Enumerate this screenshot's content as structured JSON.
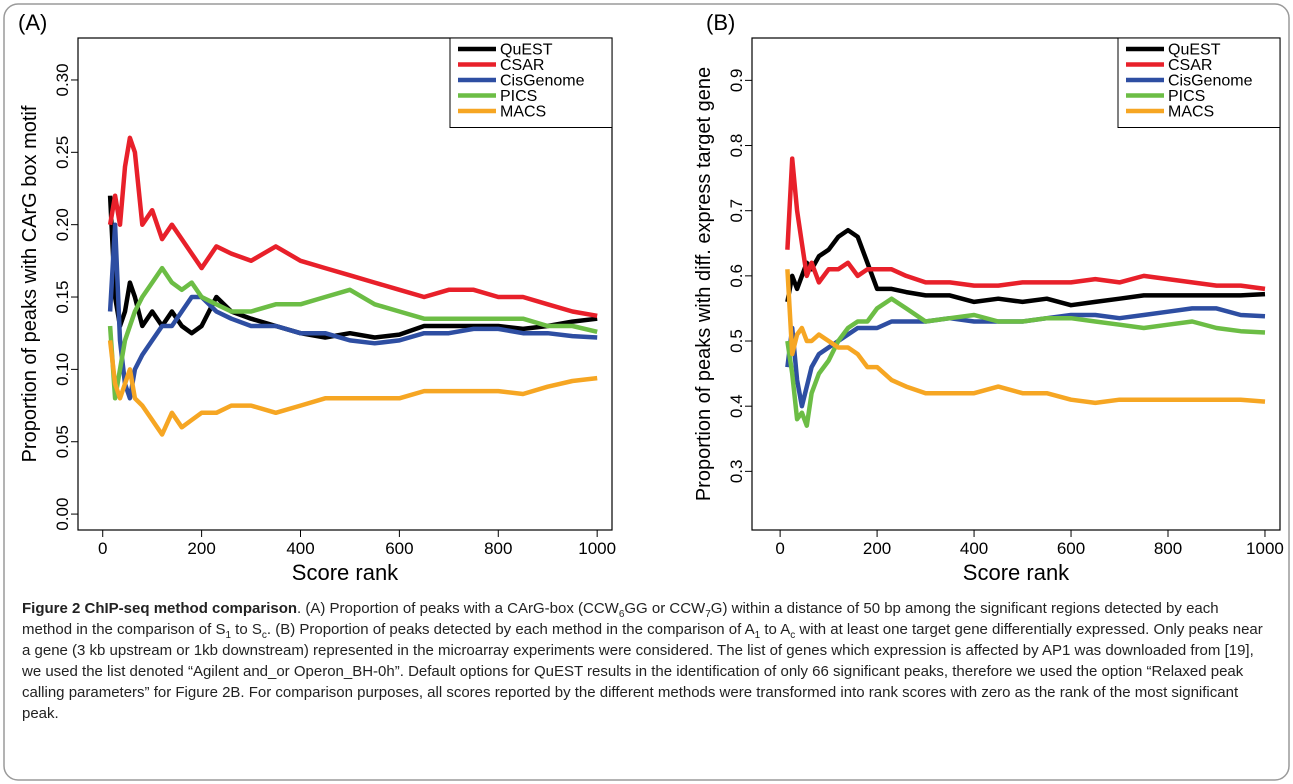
{
  "chart_data": [
    {
      "type": "line",
      "panel_label": "(A)",
      "x_label": "Score rank",
      "y_label": "Proportion of peaks with CArG box motif",
      "x": [
        15,
        25,
        35,
        45,
        55,
        65,
        80,
        100,
        120,
        140,
        160,
        180,
        200,
        230,
        260,
        300,
        350,
        400,
        450,
        500,
        550,
        600,
        650,
        700,
        750,
        800,
        850,
        900,
        950,
        1000
      ],
      "series": [
        {
          "name": "QuEST",
          "color": "#000000",
          "values": [
            0.22,
            0.15,
            0.13,
            0.14,
            0.16,
            0.15,
            0.13,
            0.14,
            0.13,
            0.14,
            0.13,
            0.125,
            0.13,
            0.15,
            0.14,
            0.135,
            0.13,
            0.125,
            0.122,
            0.125,
            0.122,
            0.124,
            0.13,
            0.13,
            0.13,
            0.13,
            0.128,
            0.13,
            0.133,
            0.135
          ]
        },
        {
          "name": "CSAR",
          "color": "#e8202a",
          "values": [
            0.2,
            0.22,
            0.2,
            0.24,
            0.26,
            0.25,
            0.2,
            0.21,
            0.19,
            0.2,
            0.19,
            0.18,
            0.17,
            0.185,
            0.18,
            0.175,
            0.185,
            0.175,
            0.17,
            0.165,
            0.16,
            0.155,
            0.15,
            0.155,
            0.155,
            0.15,
            0.15,
            0.145,
            0.14,
            0.137
          ]
        },
        {
          "name": "CisGenome",
          "color": "#2e4ea2",
          "values": [
            0.14,
            0.2,
            0.12,
            0.09,
            0.08,
            0.1,
            0.11,
            0.12,
            0.13,
            0.13,
            0.14,
            0.15,
            0.15,
            0.14,
            0.135,
            0.13,
            0.13,
            0.125,
            0.125,
            0.12,
            0.118,
            0.12,
            0.125,
            0.125,
            0.128,
            0.128,
            0.125,
            0.125,
            0.123,
            0.122
          ]
        },
        {
          "name": "PICS",
          "color": "#6cbd45",
          "values": [
            0.13,
            0.08,
            0.1,
            0.12,
            0.13,
            0.14,
            0.15,
            0.16,
            0.17,
            0.16,
            0.155,
            0.16,
            0.15,
            0.145,
            0.14,
            0.14,
            0.145,
            0.145,
            0.15,
            0.155,
            0.145,
            0.14,
            0.135,
            0.135,
            0.135,
            0.135,
            0.135,
            0.13,
            0.13,
            0.126
          ]
        },
        {
          "name": "MACS",
          "color": "#f6a623",
          "values": [
            0.12,
            0.09,
            0.08,
            0.09,
            0.1,
            0.08,
            0.075,
            0.065,
            0.055,
            0.07,
            0.06,
            0.065,
            0.07,
            0.07,
            0.075,
            0.075,
            0.07,
            0.075,
            0.08,
            0.08,
            0.08,
            0.08,
            0.085,
            0.085,
            0.085,
            0.085,
            0.083,
            0.088,
            0.092,
            0.094
          ]
        }
      ],
      "xlim": [
        -50,
        1030
      ],
      "xticks": [
        0,
        200,
        400,
        600,
        800,
        1000
      ],
      "ylim": [
        -0.011,
        0.329
      ],
      "yticks": [
        {
          "value": 0,
          "label": "0.00"
        },
        0.05,
        {
          "value": 0.1,
          "label": "0.10"
        },
        0.15,
        {
          "value": 0.2,
          "label": "0.20"
        },
        0.25,
        {
          "value": 0.3,
          "label": "0.30"
        }
      ],
      "legend": "top-right"
    },
    {
      "type": "line",
      "panel_label": "(B)",
      "x_label": "Score rank",
      "y_label": "Proportion of peaks with diff. express target gene",
      "x": [
        15,
        25,
        35,
        45,
        55,
        65,
        80,
        100,
        120,
        140,
        160,
        180,
        200,
        230,
        260,
        300,
        350,
        400,
        450,
        500,
        550,
        600,
        650,
        700,
        750,
        800,
        850,
        900,
        950,
        1000
      ],
      "series": [
        {
          "name": "QuEST",
          "color": "#000000",
          "values": [
            0.56,
            0.6,
            0.58,
            0.6,
            0.62,
            0.61,
            0.63,
            0.64,
            0.66,
            0.67,
            0.66,
            0.62,
            0.58,
            0.58,
            0.575,
            0.57,
            0.57,
            0.56,
            0.565,
            0.56,
            0.565,
            0.555,
            0.56,
            0.565,
            0.57,
            0.57,
            0.57,
            0.57,
            0.57,
            0.572
          ]
        },
        {
          "name": "CSAR",
          "color": "#e8202a",
          "values": [
            0.64,
            0.78,
            0.7,
            0.65,
            0.6,
            0.62,
            0.59,
            0.61,
            0.61,
            0.62,
            0.6,
            0.61,
            0.61,
            0.61,
            0.6,
            0.59,
            0.59,
            0.585,
            0.585,
            0.59,
            0.59,
            0.59,
            0.595,
            0.59,
            0.6,
            0.595,
            0.59,
            0.585,
            0.585,
            0.58
          ]
        },
        {
          "name": "CisGenome",
          "color": "#2e4ea2",
          "values": [
            0.46,
            0.52,
            0.44,
            0.4,
            0.43,
            0.46,
            0.48,
            0.49,
            0.5,
            0.51,
            0.52,
            0.52,
            0.52,
            0.53,
            0.53,
            0.53,
            0.535,
            0.53,
            0.53,
            0.53,
            0.535,
            0.54,
            0.54,
            0.535,
            0.54,
            0.545,
            0.55,
            0.55,
            0.54,
            0.538
          ]
        },
        {
          "name": "PICS",
          "color": "#6cbd45",
          "values": [
            0.5,
            0.45,
            0.38,
            0.39,
            0.37,
            0.42,
            0.45,
            0.47,
            0.5,
            0.52,
            0.53,
            0.53,
            0.55,
            0.565,
            0.55,
            0.53,
            0.535,
            0.54,
            0.53,
            0.53,
            0.535,
            0.535,
            0.53,
            0.525,
            0.52,
            0.525,
            0.53,
            0.52,
            0.515,
            0.513
          ]
        },
        {
          "name": "MACS",
          "color": "#f6a623",
          "values": [
            0.61,
            0.48,
            0.51,
            0.52,
            0.5,
            0.5,
            0.51,
            0.5,
            0.49,
            0.49,
            0.48,
            0.46,
            0.46,
            0.44,
            0.43,
            0.42,
            0.42,
            0.42,
            0.43,
            0.42,
            0.42,
            0.41,
            0.405,
            0.41,
            0.41,
            0.41,
            0.41,
            0.41,
            0.41,
            0.407
          ]
        }
      ],
      "xlim": [
        -58,
        1031
      ],
      "xticks": [
        0,
        200,
        400,
        600,
        800,
        1000
      ],
      "ylim": [
        0.21,
        0.965
      ],
      "yticks": [
        0.3,
        0.4,
        0.5,
        0.6,
        0.7,
        0.8,
        0.9
      ],
      "legend": "top-right"
    }
  ],
  "caption": {
    "title": "Figure 2 ChIP-seq method comparison",
    "parts": [
      {
        "text": ". (A) Proportion of peaks with a CArG-box (CCW"
      },
      {
        "sub": "6"
      },
      {
        "text": "GG or CCW"
      },
      {
        "sub": "7"
      },
      {
        "text": "G) within a distance of 50 bp among the significant regions detected by each method in the comparison of S"
      },
      {
        "sub": "1"
      },
      {
        "text": " to S"
      },
      {
        "sub": "c"
      },
      {
        "text": ". (B) Proportion of peaks detected by each method in the comparison of A"
      },
      {
        "sub": "1"
      },
      {
        "text": " to A"
      },
      {
        "sub": "c"
      },
      {
        "text": " with at least one target gene differentially expressed. Only peaks near a gene (3 kb upstream or 1kb downstream) represented in the microarray experiments were considered. The list of genes which expression is affected by AP1 was downloaded from [19], we used the list denoted “Agilent and_or Operon_BH-0h”. Default options for QuEST results in the identification of only 66 significant peaks, therefore we used the option “Relaxed peak calling parameters” for Figure 2B. For comparison purposes, all scores reported by the different methods were transformed into rank scores with zero as the rank of the most significant peak."
      }
    ]
  }
}
